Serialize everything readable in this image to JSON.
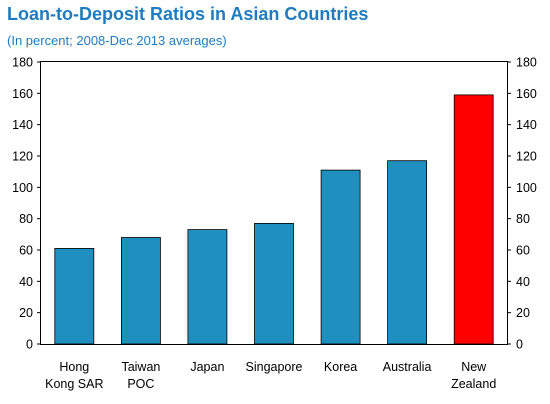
{
  "chart_data": {
    "type": "bar",
    "title": "Loan-to-Deposit Ratios in Asian Countries",
    "subtitle": "(In percent; 2008-Dec 2013 averages)",
    "categories": [
      [
        "Hong",
        "Kong SAR"
      ],
      [
        "Taiwan",
        "POC"
      ],
      [
        "Japan"
      ],
      [
        "Singapore"
      ],
      [
        "Korea"
      ],
      [
        "Australia"
      ],
      [
        "New",
        "Zealand"
      ]
    ],
    "values": [
      61,
      68,
      73,
      77,
      111,
      117,
      159
    ],
    "bar_colors": [
      "#1f8fbf",
      "#1f8fbf",
      "#1f8fbf",
      "#1f8fbf",
      "#1f8fbf",
      "#1f8fbf",
      "#ff0000"
    ],
    "ylim": [
      0,
      180
    ],
    "yticks": [
      0,
      20,
      40,
      60,
      80,
      100,
      120,
      140,
      160,
      180
    ],
    "dual_y_axis": true,
    "grid": false,
    "legend": "none",
    "xlabel": "",
    "ylabel": ""
  }
}
